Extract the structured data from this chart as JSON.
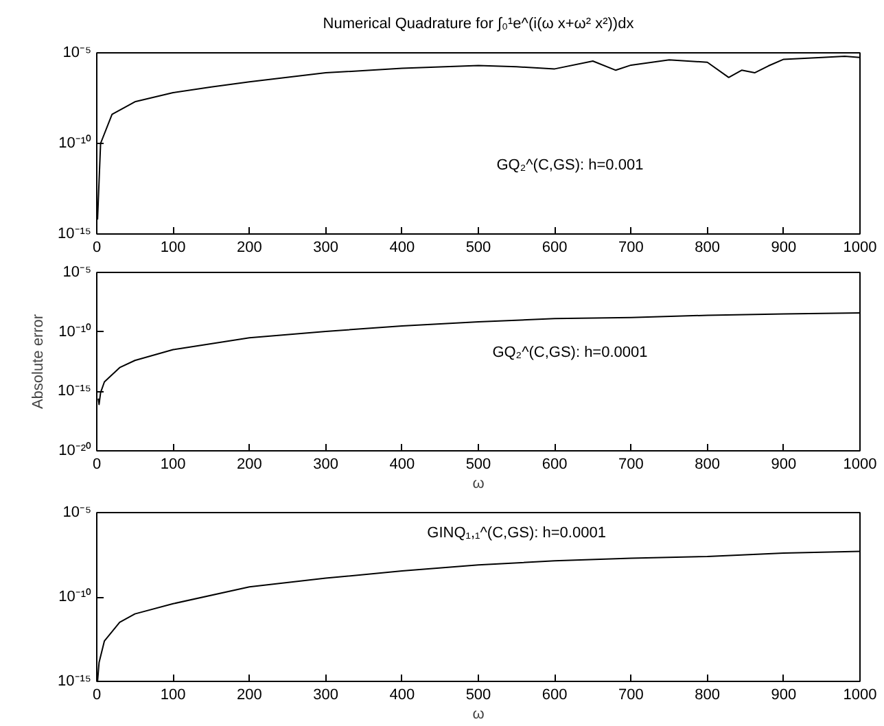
{
  "chart_data": [
    {
      "type": "line",
      "title": "Numerical Quadrature for ∫₀¹e^(i(ω x+ω² x²))dx",
      "log": "y",
      "grid": false,
      "xlim": [
        0,
        1000
      ],
      "xticks": [
        0,
        100,
        200,
        300,
        400,
        500,
        600,
        700,
        800,
        900,
        1000
      ],
      "ylim": [
        1e-15,
        1e-05
      ],
      "yticks": [
        {
          "value": 1e-15,
          "label": "10⁻¹⁵"
        },
        {
          "value": 1e-10,
          "label": "10⁻¹⁰"
        },
        {
          "value": 1e-05,
          "label": "10⁻⁵"
        }
      ],
      "annotations": [
        "GQ₂^(C,GS): h=0.001"
      ],
      "series": [
        {
          "color": "#000000",
          "x": [
            1,
            5,
            20,
            50,
            100,
            150,
            200,
            300,
            400,
            500,
            550,
            600,
            650,
            680,
            700,
            750,
            800,
            828,
            845,
            862,
            880,
            900,
            950,
            980,
            1000
          ],
          "values": [
            6.3e-15,
            1e-10,
            4e-09,
            2e-08,
            6.3e-08,
            1.3e-07,
            2.5e-07,
            7.9e-07,
            1.4e-06,
            2e-06,
            1.7e-06,
            1.3e-06,
            3.5e-06,
            1.1e-06,
            2.1e-06,
            4.1e-06,
            3e-06,
            4.4e-07,
            1.1e-06,
            7.9e-07,
            1.9e-06,
            4.4e-06,
            5.5e-06,
            6.4e-06,
            5.5e-06
          ]
        }
      ]
    },
    {
      "type": "line",
      "xlabel": "ω",
      "ylabel": "Absolute error",
      "log": "y",
      "grid": false,
      "xlim": [
        0,
        1000
      ],
      "xticks": [
        0,
        100,
        200,
        300,
        400,
        500,
        600,
        700,
        800,
        900,
        1000
      ],
      "ylim": [
        1e-20,
        1e-05
      ],
      "yticks": [
        {
          "value": 1e-20,
          "label": "10⁻²⁰"
        },
        {
          "value": 1e-15,
          "label": "10⁻¹⁵"
        },
        {
          "value": 1e-10,
          "label": "10⁻¹⁰"
        },
        {
          "value": 1e-05,
          "label": "10⁻⁵"
        }
      ],
      "annotations": [
        "GQ₂^(C,GS): h=0.0001"
      ],
      "series": [
        {
          "color": "#000000",
          "x": [
            2,
            3,
            5,
            10,
            30,
            50,
            100,
            200,
            300,
            400,
            500,
            600,
            700,
            800,
            900,
            1000
          ],
          "values": [
            2.5e-16,
            7.9e-17,
            7.9e-16,
            6.3e-15,
            1e-13,
            4e-13,
            3.2e-12,
            3.2e-11,
            1.1e-10,
            3.2e-10,
            7.1e-10,
            1.3e-09,
            1.6e-09,
            2.5e-09,
            3.2e-09,
            4e-09
          ]
        }
      ]
    },
    {
      "type": "line",
      "xlabel": "ω",
      "log": "y",
      "grid": false,
      "xlim": [
        0,
        1000
      ],
      "xticks": [
        0,
        100,
        200,
        300,
        400,
        500,
        600,
        700,
        800,
        900,
        1000
      ],
      "ylim": [
        1e-15,
        1e-05
      ],
      "yticks": [
        {
          "value": 1e-15,
          "label": "10⁻¹⁵"
        },
        {
          "value": 1e-10,
          "label": "10⁻¹⁰"
        },
        {
          "value": 1e-05,
          "label": "10⁻⁵"
        }
      ],
      "annotations": [
        "GINQ₁,₁^(C,GS): h=0.0001"
      ],
      "series": [
        {
          "color": "#000000",
          "x": [
            1,
            3,
            10,
            30,
            50,
            100,
            200,
            300,
            400,
            500,
            600,
            700,
            800,
            900,
            1000
          ],
          "values": [
            1e-15,
            1.3e-14,
            2.5e-13,
            3.2e-12,
            1e-11,
            4e-11,
            4e-10,
            1.3e-09,
            3.5e-09,
            7.9e-09,
            1.4e-08,
            2e-08,
            2.5e-08,
            4e-08,
            5e-08
          ]
        }
      ]
    }
  ]
}
